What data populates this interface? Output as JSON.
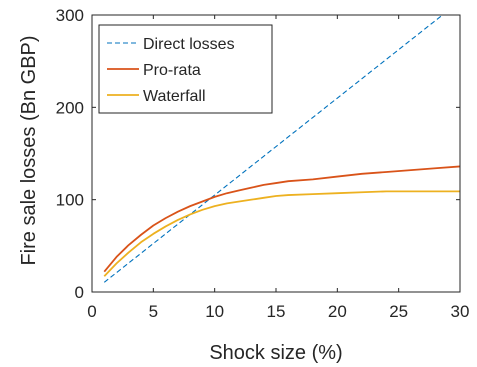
{
  "chart_data": {
    "type": "line",
    "title": "",
    "xlabel": "Shock size (%)",
    "ylabel": "Fire sale losses (Bn GBP)",
    "xlim": [
      0,
      30
    ],
    "ylim": [
      0,
      300
    ],
    "xticks": [
      0,
      5,
      10,
      15,
      20,
      25,
      30
    ],
    "yticks": [
      0,
      100,
      200,
      300
    ],
    "grid": false,
    "legend_position": "top-left",
    "series": [
      {
        "name": "Direct losses",
        "style": "dashed",
        "color": "#0072BD",
        "x": [
          1,
          30
        ],
        "y": [
          10.5,
          315
        ]
      },
      {
        "name": "Pro-rata",
        "style": "solid",
        "color": "#D95319",
        "x": [
          1,
          2,
          3,
          4,
          5,
          6,
          7,
          8,
          9,
          10,
          11,
          12,
          13,
          14,
          15,
          16,
          18,
          20,
          22,
          24,
          26,
          28,
          30
        ],
        "y": [
          22,
          38,
          51,
          62,
          72,
          80,
          87,
          93,
          98,
          103,
          107,
          110,
          113,
          116,
          118,
          120,
          122,
          125,
          128,
          130,
          132,
          134,
          136
        ]
      },
      {
        "name": "Waterfall",
        "style": "solid",
        "color": "#EDB120",
        "x": [
          1,
          2,
          3,
          4,
          5,
          6,
          7,
          8,
          9,
          10,
          11,
          12,
          13,
          14,
          15,
          16,
          18,
          20,
          22,
          24,
          26,
          28,
          30
        ],
        "y": [
          17,
          31,
          43,
          54,
          63,
          71,
          78,
          84,
          89,
          93,
          96,
          98,
          100,
          102,
          104,
          105,
          106,
          107,
          108,
          109,
          109,
          109,
          109
        ]
      }
    ]
  }
}
